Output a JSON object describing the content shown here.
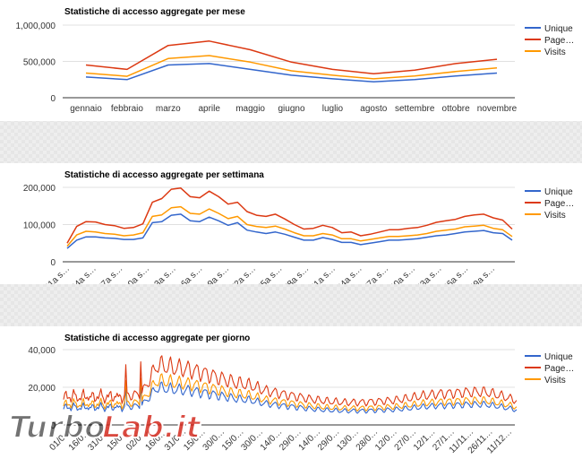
{
  "chart_data": [
    {
      "id": "month",
      "type": "line",
      "title": "Statistiche di accesso aggregate per mese",
      "categories": [
        "gennaio",
        "febbraio",
        "marzo",
        "aprile",
        "maggio",
        "giugno",
        "luglio",
        "agosto",
        "settembre",
        "ottobre",
        "novembre"
      ],
      "x_ticks": [
        "gennaio",
        "febbraio",
        "marzo",
        "aprile",
        "maggio",
        "giugno",
        "luglio",
        "agosto",
        "settembre",
        "ottobre",
        "novembre"
      ],
      "y_ticks": [
        {
          "v": 0,
          "label": "0"
        },
        {
          "v": 500000,
          "label": "500,000"
        },
        {
          "v": 1000000,
          "label": "1,000,000"
        }
      ],
      "ylim": [
        0,
        1000000
      ],
      "series": [
        {
          "name": "Unique",
          "color": "#3366cc",
          "values": [
            285000,
            250000,
            450000,
            470000,
            390000,
            310000,
            260000,
            220000,
            250000,
            300000,
            340000
          ]
        },
        {
          "name": "Page…",
          "color": "#dc3912",
          "values": [
            450000,
            390000,
            720000,
            780000,
            660000,
            490000,
            390000,
            330000,
            380000,
            470000,
            530000
          ]
        },
        {
          "name": "Visits",
          "color": "#ff9900",
          "values": [
            340000,
            295000,
            540000,
            580000,
            490000,
            370000,
            310000,
            260000,
            300000,
            360000,
            410000
          ]
        }
      ],
      "legend": "right",
      "grid": true
    },
    {
      "id": "week",
      "type": "line",
      "title": "Statistiche di accesso aggregate per settimana",
      "x_ticks": [
        "01a s…",
        "04a s…",
        "07a s…",
        "10a s…",
        "13a s…",
        "16a s…",
        "19a s…",
        "22a s…",
        "25a s…",
        "28a s…",
        "31a s…",
        "34a s…",
        "37a s…",
        "40a s…",
        "43a s…",
        "46a s…",
        "49a s…"
      ],
      "y_ticks": [
        {
          "v": 0,
          "label": "0"
        },
        {
          "v": 100000,
          "label": "100,000"
        },
        {
          "v": 200000,
          "label": "200,000"
        }
      ],
      "ylim": [
        0,
        200000
      ],
      "series": [
        {
          "name": "Unique",
          "color": "#3366cc",
          "values": [
            36000,
            58000,
            67000,
            67000,
            64000,
            63000,
            60000,
            60000,
            64000,
            105000,
            108000,
            125000,
            128000,
            110000,
            108000,
            120000,
            110000,
            98000,
            105000,
            85000,
            80000,
            76000,
            80000,
            74000,
            66000,
            58000,
            58000,
            65000,
            60000,
            52000,
            52000,
            46000,
            50000,
            54000,
            58000,
            58000,
            60000,
            62000,
            66000,
            70000,
            72000,
            76000,
            80000,
            82000,
            84000,
            78000,
            76000,
            58000
          ]
        },
        {
          "name": "Page…",
          "color": "#dc3912",
          "values": [
            50000,
            95000,
            108000,
            107000,
            100000,
            97000,
            90000,
            92000,
            102000,
            160000,
            170000,
            195000,
            198000,
            175000,
            172000,
            190000,
            175000,
            155000,
            160000,
            135000,
            125000,
            122000,
            128000,
            115000,
            100000,
            88000,
            90000,
            98000,
            92000,
            78000,
            80000,
            70000,
            74000,
            80000,
            86000,
            86000,
            90000,
            92000,
            98000,
            106000,
            110000,
            114000,
            122000,
            126000,
            128000,
            118000,
            112000,
            88000
          ]
        },
        {
          "name": "Visits",
          "color": "#ff9900",
          "values": [
            42000,
            72000,
            82000,
            80000,
            76000,
            74000,
            70000,
            72000,
            78000,
            122000,
            126000,
            145000,
            148000,
            130000,
            128000,
            142000,
            130000,
            116000,
            122000,
            100000,
            95000,
            92000,
            96000,
            88000,
            78000,
            70000,
            70000,
            76000,
            72000,
            62000,
            62000,
            56000,
            60000,
            64000,
            68000,
            68000,
            70000,
            72000,
            76000,
            82000,
            85000,
            88000,
            94000,
            96000,
            98000,
            90000,
            86000,
            68000
          ]
        }
      ],
      "legend": "right",
      "grid": true
    },
    {
      "id": "day",
      "type": "line",
      "title": "Statistiche di accesso aggregate per giorno",
      "x_ticks": [
        "01/0…",
        "16/0…",
        "31/0…",
        "15/0…",
        "02/0…",
        "16/0…",
        "31/0…",
        "15/0…",
        "30/0…",
        "15/0…",
        "30/0…",
        "14/0…",
        "29/0…",
        "14/0…",
        "29/0…",
        "13/0…",
        "28/0…",
        "12/0…",
        "27/0…",
        "12/1…",
        "27/1…",
        "11/11…",
        "26/11…",
        "11/12…"
      ],
      "y_ticks": [
        {
          "v": 0,
          "label": "0"
        },
        {
          "v": 20000,
          "label": "20,000"
        },
        {
          "v": 40000,
          "label": "40,000"
        }
      ],
      "ylim": [
        0,
        40000
      ],
      "series_names": [
        "Unique",
        "Page…",
        "Visits"
      ],
      "series_colors": [
        "#3366cc",
        "#dc3912",
        "#ff9900"
      ],
      "series_levels_page": [
        14000,
        15500,
        16000,
        15000,
        15500,
        16500,
        32000,
        30500,
        29500,
        27500,
        25000,
        22500,
        21000,
        18000,
        16500,
        15000,
        13500,
        12500,
        12000,
        12000,
        12500,
        13000,
        14000,
        15500,
        16500,
        17000,
        17500,
        17500,
        15500,
        13000
      ],
      "series_ratio_unique": 0.62,
      "series_ratio_visits": 0.74,
      "legend": "right",
      "grid": true
    }
  ],
  "legend_labels": [
    "Unique",
    "Page…",
    "Visits"
  ],
  "watermark": {
    "text_a": "Turbo",
    "text_b": "Lab.it"
  }
}
